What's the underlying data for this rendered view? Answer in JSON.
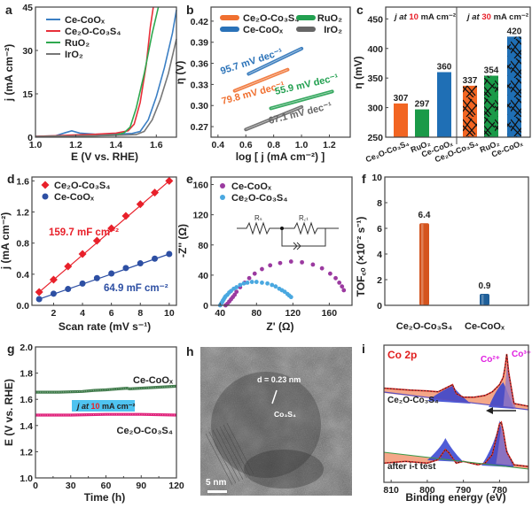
{
  "figure": {
    "panels": [
      "a",
      "b",
      "c",
      "d",
      "e",
      "f",
      "g",
      "h",
      "i"
    ]
  },
  "chart_data": [
    {
      "id": "a",
      "panel_label": "a",
      "type": "line",
      "xlabel": "E (V vs. RHE)",
      "ylabel": "j (mA cm⁻²)",
      "xlim": [
        1.0,
        1.7
      ],
      "ylim": [
        0,
        45
      ],
      "xticks": [
        "1.0",
        "1.2",
        "1.4",
        "1.6"
      ],
      "xtick_values": [
        1.0,
        1.2,
        1.4,
        1.6
      ],
      "yticks": [
        "0",
        "15",
        "30",
        "45"
      ],
      "ytick_values": [
        0,
        15,
        30,
        45
      ],
      "legend": "top-left",
      "series": [
        {
          "name": "Ce-CoOₓ",
          "color": "#3b7fc4",
          "x": [
            1.0,
            1.1,
            1.15,
            1.18,
            1.22,
            1.3,
            1.4,
            1.48,
            1.52,
            1.56,
            1.6,
            1.64,
            1.68,
            1.7
          ],
          "y": [
            0.3,
            0.5,
            1.6,
            2.2,
            1.4,
            1.0,
            1.1,
            1.3,
            2.0,
            6,
            14,
            24,
            36,
            44
          ]
        },
        {
          "name": "Ce₂O-Co₃S₄",
          "color": "#e8303a",
          "x": [
            1.0,
            1.1,
            1.2,
            1.3,
            1.4,
            1.46,
            1.49,
            1.52,
            1.55,
            1.57,
            1.585
          ],
          "y": [
            0.3,
            0.5,
            0.8,
            1.0,
            1.4,
            2.2,
            4.5,
            12,
            25,
            38,
            45
          ]
        },
        {
          "name": "RuO₂",
          "color": "#2ea84f",
          "x": [
            1.0,
            1.1,
            1.2,
            1.3,
            1.4,
            1.44,
            1.47,
            1.5,
            1.54,
            1.58,
            1.61
          ],
          "y": [
            0.2,
            0.3,
            0.4,
            0.5,
            0.8,
            1.5,
            3.5,
            10,
            22,
            36,
            45
          ]
        },
        {
          "name": "IrO₂",
          "color": "#777777",
          "x": [
            1.0,
            1.1,
            1.2,
            1.3,
            1.4,
            1.5,
            1.54,
            1.58,
            1.62,
            1.66,
            1.7
          ],
          "y": [
            0.2,
            0.3,
            0.4,
            0.5,
            0.6,
            0.9,
            2,
            6,
            13,
            22,
            34
          ]
        }
      ]
    },
    {
      "id": "b",
      "panel_label": "b",
      "type": "line",
      "xlabel": "log [ j (mA cm⁻²) ]",
      "ylabel": "η (V)",
      "xlim": [
        0.35,
        1.35
      ],
      "ylim": [
        0.255,
        0.44
      ],
      "xticks": [
        "0.4",
        "0.6",
        "0.8",
        "1.0",
        "1.2"
      ],
      "xtick_values": [
        0.4,
        0.6,
        0.8,
        1.0,
        1.2
      ],
      "yticks": [
        "0.27",
        "0.30",
        "0.33",
        "0.36",
        "0.39",
        "0.42"
      ],
      "ytick_values": [
        0.27,
        0.3,
        0.33,
        0.36,
        0.39,
        0.42
      ],
      "legend": "top",
      "series": [
        {
          "name": "Ce₂O-Co₃S₄",
          "color": "#f07030",
          "x": [
            0.52,
            0.9
          ],
          "y": [
            0.321,
            0.351
          ],
          "annotation": "79.8 mV dec⁻¹"
        },
        {
          "name": "Ce-CoOₓ",
          "color": "#2a72b8",
          "x": [
            0.62,
            1.0
          ],
          "y": [
            0.345,
            0.381
          ],
          "annotation": "95.7 mV dec⁻¹"
        },
        {
          "name": "RuO₂",
          "color": "#22a050",
          "x": [
            0.78,
            1.22
          ],
          "y": [
            0.296,
            0.32
          ],
          "annotation": "55.9 mV dec⁻¹"
        },
        {
          "name": "IrO₂",
          "color": "#666666",
          "x": [
            0.6,
            1.0
          ],
          "y": [
            0.266,
            0.298
          ],
          "annotation": "67.1 mV dec⁻¹"
        }
      ]
    },
    {
      "id": "c",
      "panel_label": "c",
      "type": "bar",
      "ylabel": "η (mV)",
      "ylim": [
        250,
        470
      ],
      "yticks": [
        "250",
        "300",
        "350",
        "400",
        "450"
      ],
      "ytick_values": [
        250,
        300,
        350,
        400,
        450
      ],
      "groups": [
        {
          "title_prefix": "j at ",
          "title_value": "10",
          "title_suffix": " mA cm⁻²",
          "categories": [
            "Ce₂O-Co₃S₄",
            "RuO₂",
            "Ce-CoOₓ"
          ],
          "values": [
            307,
            297,
            360
          ],
          "hatched": false
        },
        {
          "title_prefix": "j at ",
          "title_value": "30",
          "title_suffix": " mA cm⁻²",
          "categories": [
            "Ce₂O-Co₃S₄",
            "RuO₂",
            "Ce-CoOₓ"
          ],
          "values": [
            337,
            354,
            420
          ],
          "hatched": true
        }
      ],
      "colors": [
        "#f26522",
        "#1a9a48",
        "#1f6fb5"
      ]
    },
    {
      "id": "d",
      "panel_label": "d",
      "type": "scatter",
      "xlabel": "Scan rate (mV s⁻¹)",
      "ylabel": "j (mA cm⁻²)",
      "xlim": [
        0.5,
        10.5
      ],
      "ylim": [
        0,
        1.65
      ],
      "xticks": [
        "2",
        "4",
        "6",
        "8",
        "10"
      ],
      "xtick_values": [
        2,
        4,
        6,
        8,
        10
      ],
      "yticks": [
        "0.0",
        "0.4",
        "0.8",
        "1.2",
        "1.6"
      ],
      "ytick_values": [
        0,
        0.4,
        0.8,
        1.2,
        1.6
      ],
      "legend": "top-left",
      "series": [
        {
          "name": "Ce₂O-Co₃S₄",
          "color": "#e8202a",
          "marker": "diamond",
          "x": [
            1,
            2,
            3,
            4,
            5,
            6,
            7,
            8,
            9,
            10
          ],
          "y": [
            0.17,
            0.33,
            0.5,
            0.66,
            0.83,
            0.99,
            1.15,
            1.3,
            1.45,
            1.6
          ],
          "annotation": "159.7 mF cm⁻²"
        },
        {
          "name": "Ce-CoOₓ",
          "color": "#2d4fa3",
          "marker": "circle",
          "x": [
            1,
            2,
            3,
            4,
            5,
            6,
            7,
            8,
            9,
            10
          ],
          "y": [
            0.08,
            0.15,
            0.21,
            0.28,
            0.35,
            0.41,
            0.48,
            0.54,
            0.6,
            0.66
          ],
          "annotation": "64.9 mF cm⁻²"
        }
      ]
    },
    {
      "id": "e",
      "panel_label": "e",
      "type": "scatter",
      "xlabel": "Z' (Ω)",
      "ylabel": "-Z'' (Ω)",
      "xlim": [
        30,
        185
      ],
      "ylim": [
        0,
        170
      ],
      "xticks": [
        "40",
        "80",
        "120",
        "160"
      ],
      "xtick_values": [
        40,
        80,
        120,
        160
      ],
      "yticks": [
        "0",
        "40",
        "80",
        "120",
        "160"
      ],
      "ytick_values": [
        0,
        40,
        80,
        120,
        160
      ],
      "legend": "top-left",
      "circuit_labels": [
        "Rₛ",
        "R꜀ₜ"
      ],
      "series": [
        {
          "name": "Ce-CoOₓ",
          "color": "#9b3aa0",
          "x": [
            46,
            48,
            50,
            52,
            54,
            56,
            58,
            62,
            67,
            72,
            78,
            86,
            95,
            106,
            118,
            130,
            142,
            152,
            161,
            167,
            171,
            174,
            176
          ],
          "y": [
            0,
            2,
            5,
            8,
            11,
            14,
            18,
            24,
            30,
            36,
            42,
            48,
            53,
            56,
            58,
            57,
            54,
            49,
            42,
            36,
            30,
            25,
            20
          ]
        },
        {
          "name": "Ce₂O-Co₃S₄",
          "color": "#4aa8e0",
          "x": [
            40,
            41,
            42,
            43,
            44,
            45,
            46,
            48,
            50,
            52,
            55,
            58,
            62,
            66,
            70,
            75,
            80,
            86,
            92,
            97,
            101,
            105,
            108,
            111,
            114,
            116,
            118
          ],
          "y": [
            0,
            2,
            4,
            6,
            8,
            10,
            12,
            14,
            17,
            19,
            22,
            24,
            27,
            29,
            30,
            31,
            31,
            30,
            29,
            27,
            25,
            22,
            20,
            18,
            15,
            13,
            11
          ]
        }
      ]
    },
    {
      "id": "f",
      "panel_label": "f",
      "type": "bar",
      "ylabel": "TOF꜀ₒ (×10⁻² s⁻¹)",
      "ylim": [
        0,
        10
      ],
      "yticks": [
        "0",
        "2",
        "4",
        "6",
        "8",
        "10"
      ],
      "ytick_values": [
        0,
        2,
        4,
        6,
        8,
        10
      ],
      "categories": [
        "Ce₂O-Co₃S₄",
        "Ce-CoOₓ"
      ],
      "values": [
        6.4,
        0.9
      ],
      "value_labels": [
        "6.4",
        "0.9"
      ],
      "colors": [
        "#d4541e",
        "#1f5f99"
      ]
    },
    {
      "id": "g",
      "panel_label": "g",
      "type": "line",
      "xlabel": "Time (h)",
      "ylabel": "E (V vs. RHE)",
      "xlim": [
        0,
        120
      ],
      "ylim": [
        1.0,
        2.0
      ],
      "xticks": [
        "0",
        "30",
        "60",
        "90",
        "120"
      ],
      "xtick_values": [
        0,
        30,
        60,
        90,
        120
      ],
      "yticks": [
        "1.0",
        "1.2",
        "1.4",
        "1.6",
        "1.8",
        "2.0"
      ],
      "ytick_values": [
        1.0,
        1.2,
        1.4,
        1.6,
        1.8,
        2.0
      ],
      "annotation_prefix": "j at ",
      "annotation_value": "10",
      "annotation_suffix": " mA cm⁻²",
      "series": [
        {
          "name": "Ce-CoOₓ",
          "color": "#3f7a4a",
          "x": [
            0,
            20,
            40,
            50,
            60,
            78,
            80,
            100,
            120
          ],
          "y": [
            1.655,
            1.655,
            1.66,
            1.668,
            1.672,
            1.685,
            1.68,
            1.69,
            1.7
          ]
        },
        {
          "name": "Ce₂O-Co₃S₄",
          "color": "#e0207a",
          "x": [
            0,
            30,
            60,
            90,
            120
          ],
          "y": [
            1.48,
            1.48,
            1.485,
            1.485,
            1.48
          ]
        }
      ]
    },
    {
      "id": "i",
      "panel_label": "i",
      "type": "line",
      "title": "Co 2p",
      "xlabel": "Binding energy (eV)",
      "xlim": [
        812,
        772
      ],
      "xticks": [
        "810",
        "800",
        "790",
        "780"
      ],
      "xtick_values": [
        810,
        800,
        790,
        780
      ],
      "peak_labels": [
        "Co²⁺",
        "Co³⁺"
      ],
      "sample_labels": [
        "Ce₂O-Co₃S₄",
        "after i-t test"
      ],
      "series": [
        {
          "name": "Ce₂O-Co₃S₄",
          "color": "#d9302b",
          "x": [
            812,
            805,
            800,
            797,
            794,
            793,
            792,
            790,
            787,
            784,
            782,
            780,
            779,
            778.5,
            778,
            777.5,
            776,
            772
          ],
          "y": [
            0.62,
            0.6,
            0.59,
            0.58,
            0.64,
            0.66,
            0.56,
            0.52,
            0.52,
            0.54,
            0.58,
            0.66,
            0.74,
            0.85,
            1.0,
            0.8,
            0.45,
            0.42
          ]
        },
        {
          "name": "after i-t test",
          "color": "#d9302b",
          "x": [
            812,
            806,
            800,
            797,
            795,
            794,
            792,
            790,
            786,
            784,
            782,
            781,
            780,
            779.5,
            779,
            778,
            776,
            772
          ],
          "y": [
            0.12,
            0.14,
            0.12,
            0.16,
            0.28,
            0.24,
            0.12,
            0.14,
            0.1,
            0.12,
            0.22,
            0.4,
            0.58,
            0.6,
            0.5,
            0.25,
            0.1,
            0.08
          ]
        }
      ]
    }
  ],
  "panel_h": {
    "panel_label": "h",
    "type": "TEM image",
    "annotation_d": "d = 0.23 nm",
    "annotation_phase": "Co₃S₄",
    "scale_bar": "5 nm"
  }
}
